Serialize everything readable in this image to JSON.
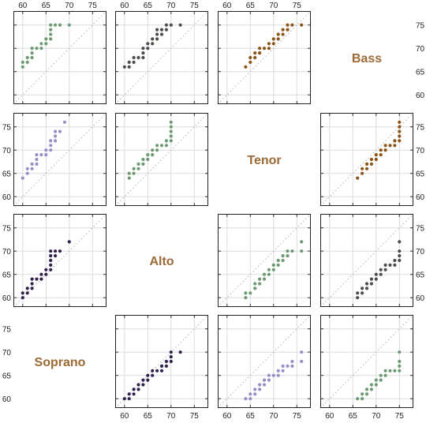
{
  "chart_data": {
    "type": "scatter",
    "title": "",
    "axis_range": [
      58,
      78
    ],
    "ticks": [
      60,
      65,
      70,
      75
    ],
    "tick_labels": [
      "60",
      "65",
      "70",
      "75"
    ],
    "grid": true,
    "reference_line": "y = x (dotted)",
    "voices": [
      "Soprano",
      "Alto",
      "Tenor",
      "Bass"
    ],
    "label_color": "#9b6a35",
    "panels": [
      {
        "row_voice": "Bass",
        "col_voice": "Soprano",
        "color": "#6d9a72",
        "points": [
          [
            60,
            66
          ],
          [
            60,
            67
          ],
          [
            61,
            67
          ],
          [
            61,
            68
          ],
          [
            62,
            68
          ],
          [
            62,
            69
          ],
          [
            62,
            70
          ],
          [
            63,
            70
          ],
          [
            64,
            70
          ],
          [
            64,
            71
          ],
          [
            65,
            71
          ],
          [
            65,
            72
          ],
          [
            66,
            72
          ],
          [
            66,
            73
          ],
          [
            66,
            74
          ],
          [
            66,
            75
          ],
          [
            67,
            75
          ],
          [
            68,
            75
          ],
          [
            70,
            75
          ]
        ]
      },
      {
        "row_voice": "Bass",
        "col_voice": "Alto",
        "color": "#4a5049",
        "points": [
          [
            60,
            66
          ],
          [
            61,
            66
          ],
          [
            61,
            67
          ],
          [
            62,
            67
          ],
          [
            62,
            68
          ],
          [
            63,
            68
          ],
          [
            64,
            68
          ],
          [
            64,
            69
          ],
          [
            64,
            70
          ],
          [
            65,
            70
          ],
          [
            65,
            71
          ],
          [
            66,
            71
          ],
          [
            66,
            72
          ],
          [
            67,
            72
          ],
          [
            67,
            73
          ],
          [
            67,
            74
          ],
          [
            68,
            73
          ],
          [
            68,
            74
          ],
          [
            69,
            74
          ],
          [
            69,
            75
          ],
          [
            70,
            75
          ],
          [
            72,
            75
          ]
        ]
      },
      {
        "row_voice": "Bass",
        "col_voice": "Tenor",
        "color": "#8d5418",
        "points": [
          [
            64,
            66
          ],
          [
            65,
            67
          ],
          [
            65,
            68
          ],
          [
            66,
            68
          ],
          [
            66,
            69
          ],
          [
            67,
            69
          ],
          [
            67,
            70
          ],
          [
            68,
            70
          ],
          [
            69,
            70
          ],
          [
            69,
            71
          ],
          [
            70,
            71
          ],
          [
            70,
            72
          ],
          [
            71,
            72
          ],
          [
            71,
            73
          ],
          [
            72,
            73
          ],
          [
            72,
            74
          ],
          [
            73,
            74
          ],
          [
            73,
            75
          ],
          [
            74,
            75
          ],
          [
            76,
            75
          ]
        ]
      },
      {
        "row_voice": "Tenor",
        "col_voice": "Soprano",
        "color": "#9590c6",
        "points": [
          [
            60,
            64
          ],
          [
            61,
            65
          ],
          [
            61,
            66
          ],
          [
            62,
            66
          ],
          [
            62,
            67
          ],
          [
            63,
            67
          ],
          [
            63,
            68
          ],
          [
            63,
            69
          ],
          [
            64,
            69
          ],
          [
            65,
            69
          ],
          [
            65,
            70
          ],
          [
            66,
            70
          ],
          [
            66,
            71
          ],
          [
            66,
            72
          ],
          [
            67,
            72
          ],
          [
            67,
            73
          ],
          [
            67,
            74
          ],
          [
            68,
            74
          ],
          [
            69,
            76
          ]
        ]
      },
      {
        "row_voice": "Tenor",
        "col_voice": "Alto",
        "color": "#6d9a72",
        "points": [
          [
            61,
            64
          ],
          [
            61,
            65
          ],
          [
            62,
            65
          ],
          [
            62,
            66
          ],
          [
            63,
            66
          ],
          [
            63,
            67
          ],
          [
            64,
            67
          ],
          [
            64,
            68
          ],
          [
            65,
            68
          ],
          [
            65,
            69
          ],
          [
            66,
            69
          ],
          [
            66,
            70
          ],
          [
            67,
            70
          ],
          [
            67,
            71
          ],
          [
            68,
            71
          ],
          [
            69,
            71
          ],
          [
            69,
            72
          ],
          [
            70,
            72
          ],
          [
            70,
            73
          ],
          [
            70,
            74
          ],
          [
            70,
            75
          ],
          [
            70,
            76
          ]
        ]
      },
      {
        "row_voice": "Tenor",
        "col_voice": "Bass",
        "color": "#8d5418",
        "points": [
          [
            66,
            64
          ],
          [
            67,
            65
          ],
          [
            67,
            66
          ],
          [
            68,
            66
          ],
          [
            68,
            67
          ],
          [
            69,
            67
          ],
          [
            69,
            68
          ],
          [
            70,
            68
          ],
          [
            70,
            69
          ],
          [
            71,
            69
          ],
          [
            71,
            70
          ],
          [
            72,
            70
          ],
          [
            72,
            71
          ],
          [
            73,
            71
          ],
          [
            74,
            71
          ],
          [
            74,
            72
          ],
          [
            75,
            72
          ],
          [
            75,
            73
          ],
          [
            75,
            74
          ],
          [
            75,
            75
          ],
          [
            75,
            76
          ]
        ]
      },
      {
        "row_voice": "Alto",
        "col_voice": "Soprano",
        "color": "#33214d",
        "points": [
          [
            60,
            60
          ],
          [
            60,
            61
          ],
          [
            61,
            61
          ],
          [
            61,
            62
          ],
          [
            62,
            62
          ],
          [
            62,
            63
          ],
          [
            62,
            64
          ],
          [
            63,
            64
          ],
          [
            64,
            64
          ],
          [
            64,
            65
          ],
          [
            65,
            65
          ],
          [
            65,
            66
          ],
          [
            66,
            66
          ],
          [
            66,
            67
          ],
          [
            66,
            68
          ],
          [
            66,
            69
          ],
          [
            66,
            70
          ],
          [
            67,
            69
          ],
          [
            67,
            70
          ],
          [
            68,
            70
          ],
          [
            70,
            72
          ]
        ]
      },
      {
        "row_voice": "Alto",
        "col_voice": "Tenor",
        "color": "#6d9a72",
        "points": [
          [
            64,
            60
          ],
          [
            64,
            61
          ],
          [
            65,
            61
          ],
          [
            66,
            62
          ],
          [
            66,
            63
          ],
          [
            67,
            63
          ],
          [
            67,
            64
          ],
          [
            68,
            64
          ],
          [
            68,
            65
          ],
          [
            69,
            65
          ],
          [
            69,
            66
          ],
          [
            70,
            66
          ],
          [
            70,
            67
          ],
          [
            71,
            67
          ],
          [
            71,
            68
          ],
          [
            72,
            68
          ],
          [
            72,
            69
          ],
          [
            73,
            69
          ],
          [
            73,
            70
          ],
          [
            74,
            70
          ],
          [
            76,
            70
          ],
          [
            76,
            72
          ]
        ]
      },
      {
        "row_voice": "Alto",
        "col_voice": "Bass",
        "color": "#4a5049",
        "points": [
          [
            66,
            60
          ],
          [
            66,
            61
          ],
          [
            67,
            61
          ],
          [
            67,
            62
          ],
          [
            68,
            62
          ],
          [
            68,
            63
          ],
          [
            69,
            63
          ],
          [
            69,
            64
          ],
          [
            70,
            64
          ],
          [
            70,
            65
          ],
          [
            71,
            65
          ],
          [
            71,
            66
          ],
          [
            72,
            66
          ],
          [
            72,
            67
          ],
          [
            73,
            67
          ],
          [
            74,
            67
          ],
          [
            74,
            68
          ],
          [
            75,
            68
          ],
          [
            75,
            69
          ],
          [
            75,
            70
          ],
          [
            75,
            72
          ]
        ]
      },
      {
        "row_voice": "Soprano",
        "col_voice": "Alto",
        "color": "#33214d",
        "points": [
          [
            60,
            60
          ],
          [
            61,
            60
          ],
          [
            61,
            61
          ],
          [
            62,
            61
          ],
          [
            62,
            62
          ],
          [
            63,
            62
          ],
          [
            63,
            63
          ],
          [
            64,
            63
          ],
          [
            64,
            64
          ],
          [
            65,
            64
          ],
          [
            65,
            65
          ],
          [
            66,
            65
          ],
          [
            66,
            66
          ],
          [
            67,
            66
          ],
          [
            68,
            66
          ],
          [
            68,
            67
          ],
          [
            69,
            67
          ],
          [
            69,
            68
          ],
          [
            70,
            68
          ],
          [
            70,
            69
          ],
          [
            70,
            70
          ],
          [
            72,
            70
          ]
        ]
      },
      {
        "row_voice": "Soprano",
        "col_voice": "Tenor",
        "color": "#9590c6",
        "points": [
          [
            64,
            60
          ],
          [
            65,
            60
          ],
          [
            65,
            61
          ],
          [
            66,
            61
          ],
          [
            66,
            62
          ],
          [
            67,
            62
          ],
          [
            67,
            63
          ],
          [
            68,
            63
          ],
          [
            68,
            64
          ],
          [
            69,
            64
          ],
          [
            69,
            65
          ],
          [
            70,
            65
          ],
          [
            71,
            65
          ],
          [
            71,
            66
          ],
          [
            72,
            66
          ],
          [
            72,
            67
          ],
          [
            73,
            67
          ],
          [
            74,
            67
          ],
          [
            74,
            68
          ],
          [
            76,
            68
          ],
          [
            76,
            70
          ]
        ]
      },
      {
        "row_voice": "Soprano",
        "col_voice": "Bass",
        "color": "#6d9a72",
        "points": [
          [
            66,
            60
          ],
          [
            67,
            60
          ],
          [
            67,
            61
          ],
          [
            68,
            61
          ],
          [
            68,
            62
          ],
          [
            69,
            62
          ],
          [
            69,
            63
          ],
          [
            70,
            63
          ],
          [
            70,
            64
          ],
          [
            71,
            64
          ],
          [
            71,
            65
          ],
          [
            72,
            65
          ],
          [
            72,
            66
          ],
          [
            73,
            66
          ],
          [
            74,
            66
          ],
          [
            75,
            66
          ],
          [
            75,
            67
          ],
          [
            75,
            68
          ],
          [
            75,
            70
          ]
        ]
      }
    ]
  }
}
